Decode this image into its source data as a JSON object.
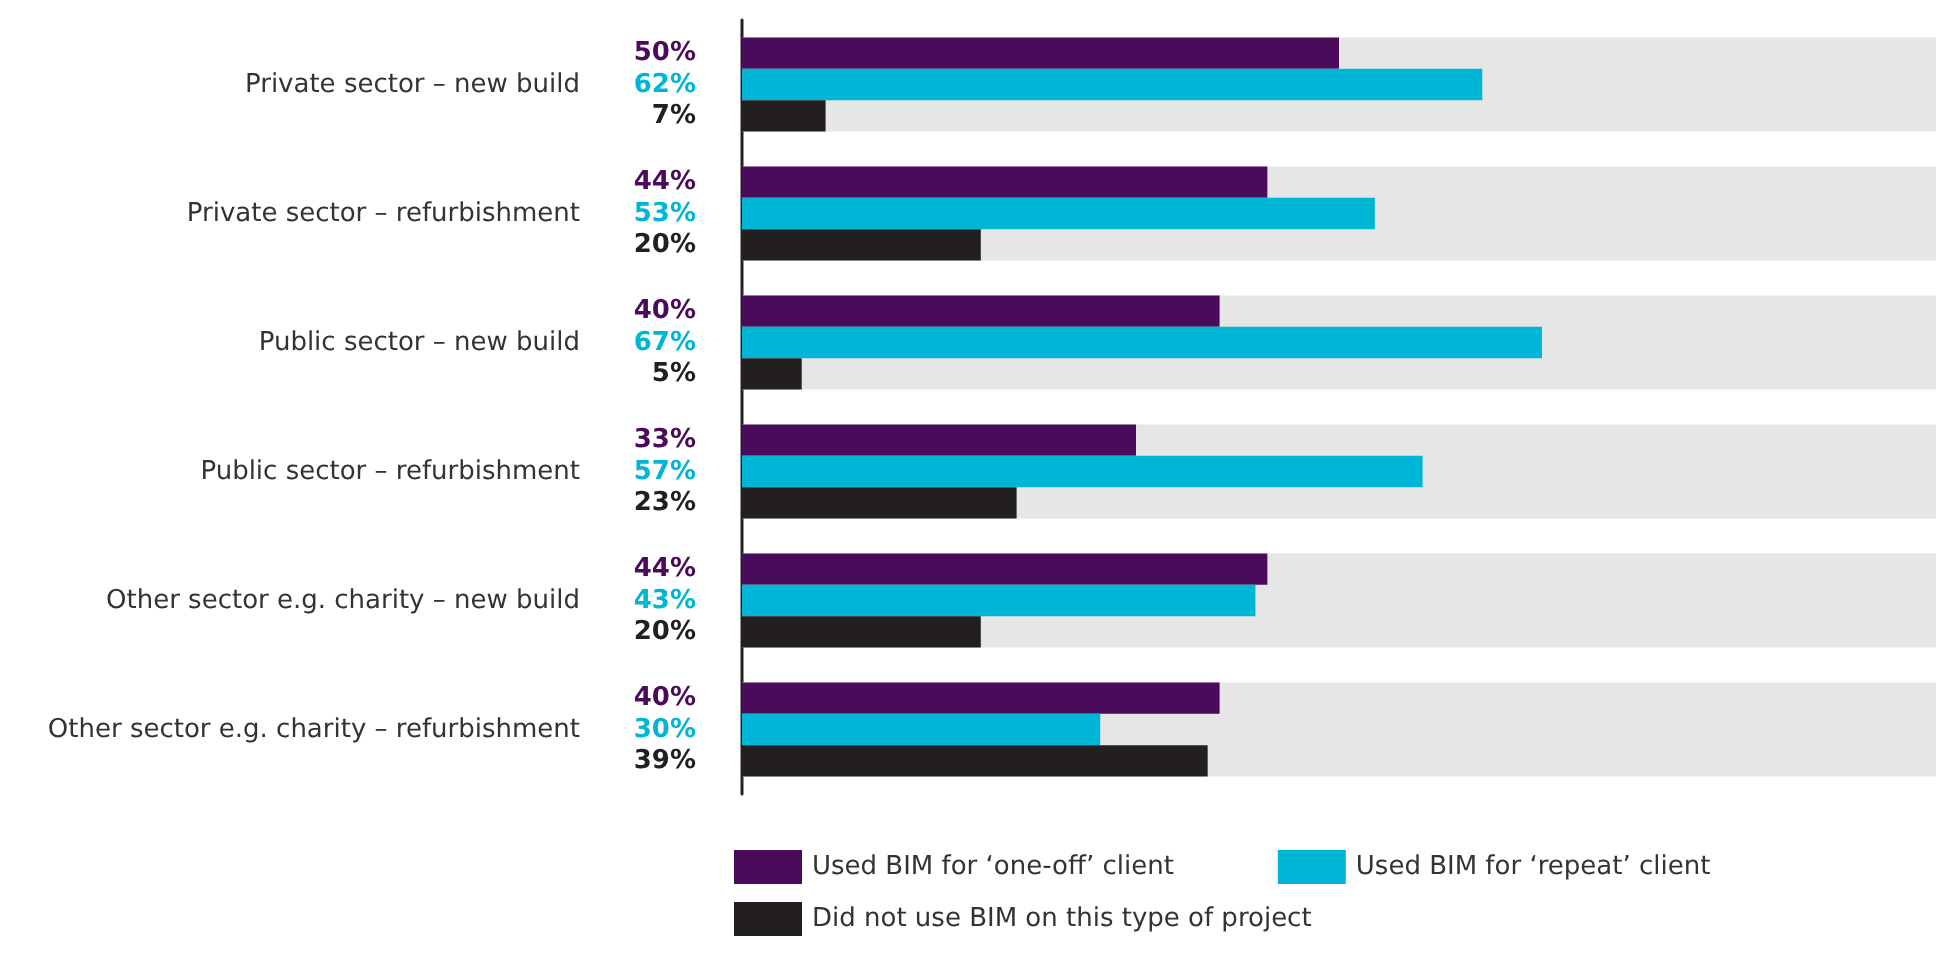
{
  "chart_data": {
    "type": "bar",
    "orientation": "horizontal",
    "categories": [
      "Private sector – new build",
      "Private sector – refurbishment",
      "Public sector – new build",
      "Public sector – refurbishment",
      "Other sector e.g. charity – new build",
      "Other sector e.g. charity – refurbishment"
    ],
    "series": [
      {
        "name": "Used BIM for ‘one-off’ client",
        "color": "#4b0b5b",
        "values": [
          50,
          44,
          40,
          33,
          44,
          40
        ],
        "value_labels": [
          "50%",
          "44%",
          "40%",
          "33%",
          "44%",
          "40%"
        ]
      },
      {
        "name": "Used BIM for ‘repeat’ client",
        "color": "#00b6d7",
        "values": [
          62,
          53,
          67,
          57,
          43,
          30
        ],
        "value_labels": [
          "62%",
          "53%",
          "67%",
          "57%",
          "43%",
          "30%"
        ]
      },
      {
        "name": "Did not use BIM on this type of project",
        "color": "#231f20",
        "values": [
          7,
          20,
          5,
          23,
          20,
          39
        ],
        "value_labels": [
          "7%",
          "20%",
          "5%",
          "23%",
          "20%",
          "39%"
        ]
      }
    ],
    "bands": [
      {
        "axis": "y",
        "from": "Private sector – new build",
        "to": "Private sector – new build",
        "color": "#e6e6e6"
      },
      {
        "axis": "y",
        "from": "Private sector – refurbishment",
        "to": "Private sector – refurbishment",
        "color": "#e6e6e6"
      },
      {
        "axis": "y",
        "from": "Public sector – new build",
        "to": "Public sector – new build",
        "color": "#e6e6e6"
      },
      {
        "axis": "y",
        "from": "Public sector – refurbishment",
        "to": "Public sector – refurbishment",
        "color": "#e6e6e6"
      },
      {
        "axis": "y",
        "from": "Other sector e.g. charity – new build",
        "to": "Other sector e.g. charity – new build",
        "color": "#e6e6e6"
      },
      {
        "axis": "y",
        "from": "Other sector e.g. charity – refurbishment",
        "to": "Other sector e.g. charity – refurbishment",
        "color": "#e6e6e6"
      }
    ],
    "xlim": [
      0,
      100
    ],
    "tick_labels": "y",
    "grid": false,
    "legend": "bottom"
  }
}
